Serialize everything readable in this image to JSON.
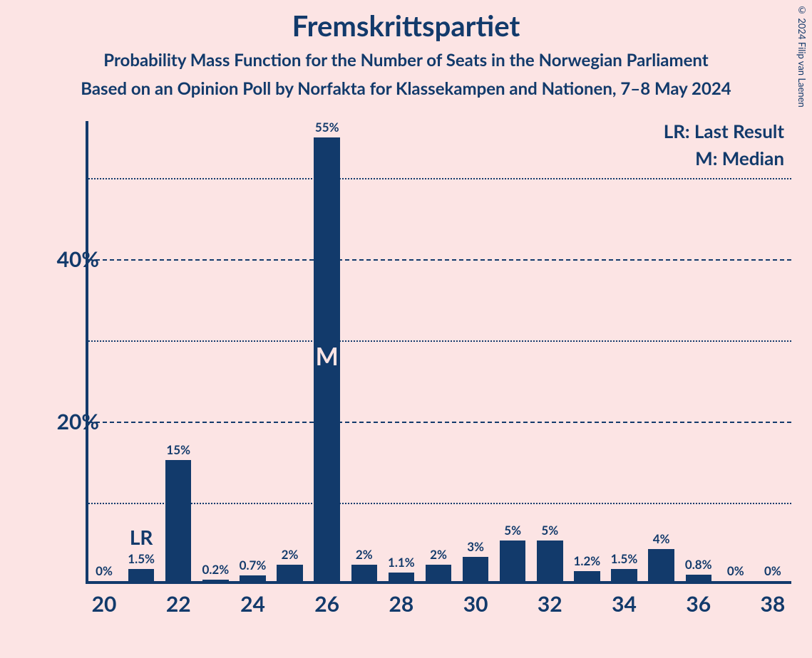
{
  "title": "Fremskrittspartiet",
  "subtitle": "Probability Mass Function for the Number of Seats in the Norwegian Parliament",
  "sourceline": "Based on an Opinion Poll by Norfakta for Klassekampen and Nationen, 7–8 May 2024",
  "copyright": "© 2024 Filip van Laenen",
  "legend": {
    "lr": "LR: Last Result",
    "m": "M: Median"
  },
  "chart": {
    "type": "bar",
    "background_color": "#fce4e4",
    "bar_color": "#123a6b",
    "text_color": "#123a6b",
    "title_fontsize": 40,
    "subtitle_fontsize": 24,
    "label_fontsize": 17,
    "axis_fontsize": 30,
    "bar_width": 0.7,
    "ylim_max": 57,
    "y_major_ticks": [
      20,
      40
    ],
    "y_minor_ticks": [
      10,
      30,
      50
    ],
    "x_categories": [
      20,
      21,
      22,
      23,
      24,
      25,
      26,
      27,
      28,
      29,
      30,
      31,
      32,
      33,
      34,
      35,
      36,
      37,
      38
    ],
    "x_tick_labels": [
      20,
      22,
      24,
      26,
      28,
      30,
      32,
      34,
      36,
      38
    ],
    "values": [
      0,
      1.5,
      15,
      0.2,
      0.7,
      2,
      55,
      2,
      1.1,
      2,
      3,
      5,
      5,
      1.2,
      1.5,
      4,
      0.8,
      0,
      0
    ],
    "value_labels": [
      "0%",
      "1.5%",
      "15%",
      "0.2%",
      "0.7%",
      "2%",
      "55%",
      "2%",
      "1.1%",
      "2%",
      "3%",
      "5%",
      "5%",
      "1.2%",
      "1.5%",
      "4%",
      "0.8%",
      "0%",
      "0%"
    ],
    "last_result_index": 1,
    "last_result_mark": "LR",
    "median_index": 6,
    "median_mark": "M",
    "y_tick_labels": {
      "20": "20%",
      "40": "40%"
    }
  }
}
